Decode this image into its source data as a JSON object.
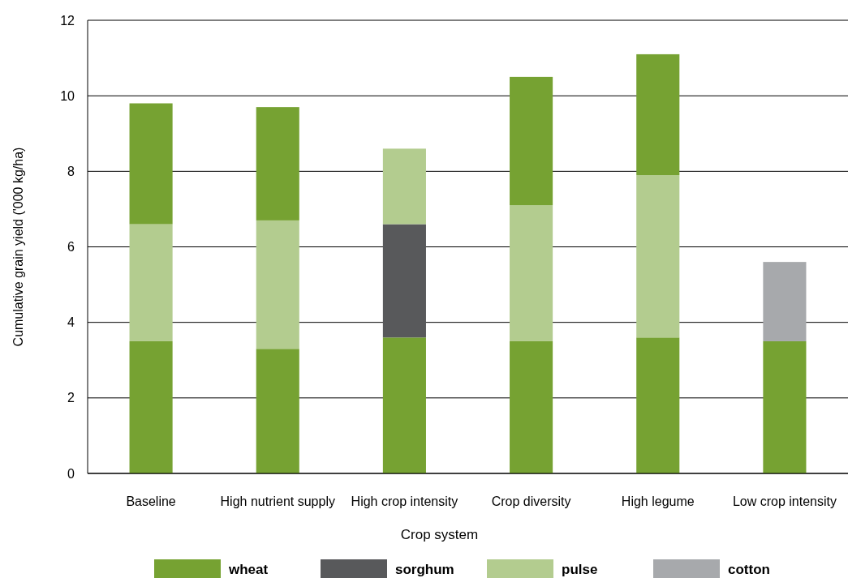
{
  "chart_data": {
    "type": "bar",
    "stacked": true,
    "xlabel": "Crop system",
    "ylabel": "Cumulative grain yield ('000 kg/ha)",
    "categories": [
      "Baseline",
      "High nutrient supply",
      "High crop intensity",
      "Crop diversity",
      "High legume",
      "Low crop intensity"
    ],
    "series": [
      {
        "name": "wheat",
        "color": "#76a232",
        "values": [
          3.5,
          3.3,
          3.6,
          3.5,
          3.6,
          3.5
        ]
      },
      {
        "name": "sorghum",
        "color": "#58595b",
        "values": [
          null,
          null,
          3.0,
          null,
          null,
          null
        ]
      },
      {
        "name": "pulse",
        "color": "#b3cc8f",
        "values": [
          3.1,
          3.4,
          2.0,
          3.6,
          4.3,
          null
        ]
      },
      {
        "name": "cotton",
        "color": "#a7a9ac",
        "values": [
          null,
          null,
          null,
          null,
          null,
          2.1
        ]
      },
      {
        "color": "#76a232",
        "values": [
          3.2,
          3.0,
          null,
          3.4,
          3.2,
          null
        ]
      }
    ],
    "ylim": [
      0,
      12
    ],
    "yticks": [
      0,
      2,
      4,
      6,
      8,
      10,
      12
    ],
    "grid": "y",
    "legend": "bottom"
  }
}
